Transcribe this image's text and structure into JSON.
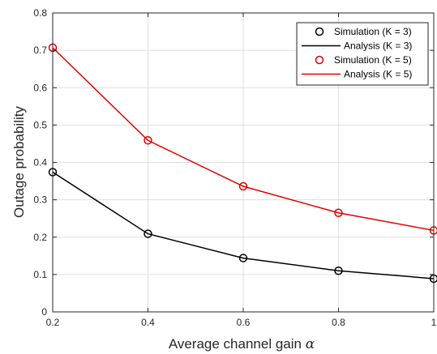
{
  "chart_data": {
    "type": "line",
    "title": "",
    "xlabel": "Average channel gain",
    "xlabel_symbol": "α",
    "ylabel": "Outage probability",
    "x": [
      0.2,
      0.4,
      0.6,
      0.8,
      1.0
    ],
    "xlim": [
      0.2,
      1.0
    ],
    "ylim": [
      0,
      0.8
    ],
    "xticks": [
      0.2,
      0.4,
      0.6,
      0.8,
      1.0
    ],
    "xtick_labels": [
      "0.2",
      "0.4",
      "0.6",
      "0.8",
      "1"
    ],
    "yticks": [
      0,
      0.1,
      0.2,
      0.3,
      0.4,
      0.5,
      0.6,
      0.7,
      0.8
    ],
    "ytick_labels": [
      "0",
      "0.1",
      "0.2",
      "0.3",
      "0.4",
      "0.5",
      "0.6",
      "0.7",
      "0.8"
    ],
    "grid": true,
    "legend_position": "top-right",
    "series": [
      {
        "name": "Simulation (K = 3)",
        "kind": "markers",
        "marker": "circle",
        "color": "#000000",
        "values": [
          0.374,
          0.209,
          0.144,
          0.11,
          0.089
        ]
      },
      {
        "name": "Analysis (K = 3)",
        "kind": "line",
        "color": "#000000",
        "values": [
          0.374,
          0.209,
          0.144,
          0.11,
          0.089
        ]
      },
      {
        "name": "Simulation (K = 5)",
        "kind": "markers",
        "marker": "circle",
        "color": "#e00000",
        "values": [
          0.707,
          0.459,
          0.336,
          0.265,
          0.218
        ]
      },
      {
        "name": "Analysis (K = 5)",
        "kind": "line",
        "color": "#e00000",
        "values": [
          0.707,
          0.459,
          0.336,
          0.265,
          0.218
        ]
      }
    ]
  }
}
